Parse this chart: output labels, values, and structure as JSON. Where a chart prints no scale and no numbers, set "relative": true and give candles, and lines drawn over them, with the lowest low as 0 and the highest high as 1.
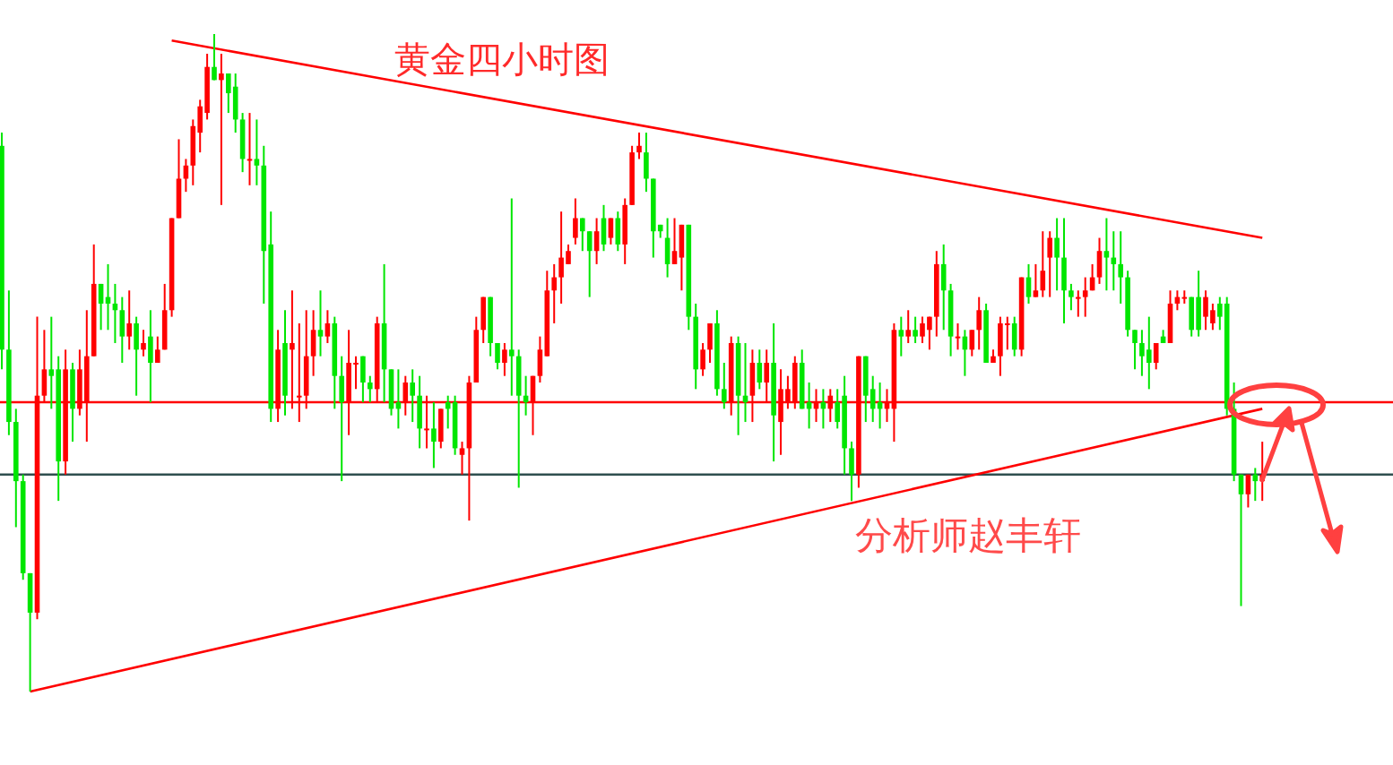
{
  "chart_data": {
    "type": "candlestick",
    "title": "黄金四小时图",
    "annotations": [
      "分析师赵丰轩"
    ],
    "relative": true,
    "categories": [
      null,
      null,
      null,
      null,
      null,
      null,
      null,
      null,
      null,
      null,
      null,
      null,
      null,
      null,
      null,
      null,
      null,
      null,
      null,
      null,
      null,
      null,
      null,
      null,
      null,
      null,
      null,
      null,
      null,
      null,
      null,
      null,
      null,
      null,
      null,
      null,
      null,
      null,
      null,
      null,
      null,
      null,
      null,
      null,
      null,
      null,
      null,
      null,
      null,
      null,
      null,
      null,
      null,
      null,
      null,
      null,
      null,
      null,
      null,
      null,
      null,
      null,
      null,
      null,
      null,
      null,
      null,
      null,
      null,
      null,
      null,
      null,
      null,
      null,
      null,
      null,
      null,
      null,
      null,
      null,
      null,
      null,
      null,
      null,
      null,
      null,
      null,
      null,
      null,
      null,
      null,
      null,
      null,
      null,
      null,
      null,
      null,
      null,
      null,
      null,
      null,
      null,
      null,
      null,
      null,
      null,
      null,
      null,
      null,
      null,
      null,
      null,
      null,
      null,
      null,
      null,
      null,
      null,
      null,
      null,
      null,
      null,
      null,
      null,
      null,
      null,
      null,
      null,
      null,
      null,
      null,
      null,
      null,
      null,
      null,
      null,
      null,
      null,
      null,
      null,
      null,
      null,
      null,
      null,
      null,
      null,
      null,
      null,
      null,
      null,
      null,
      null,
      null,
      null,
      null,
      null,
      null,
      null,
      null,
      null,
      null,
      null,
      null,
      null,
      null,
      null,
      null,
      null,
      null,
      null,
      null,
      null,
      null,
      null,
      null,
      null,
      null,
      null,
      null
    ],
    "ohlc": [
      [
        0.83,
        0.85,
        0.49,
        0.52
      ],
      [
        0.52,
        0.61,
        0.39,
        0.41
      ],
      [
        0.41,
        0.43,
        0.25,
        0.32
      ],
      [
        0.32,
        0.33,
        0.17,
        0.18
      ],
      [
        0.18,
        0.18,
        0,
        0.12
      ],
      [
        0.12,
        0.57,
        0.11,
        0.45
      ],
      [
        0.45,
        0.55,
        0.44,
        0.49
      ],
      [
        0.49,
        0.57,
        0.43,
        0.48
      ],
      [
        0.49,
        0.51,
        0.29,
        0.35
      ],
      [
        0.35,
        0.52,
        0.33,
        0.49
      ],
      [
        0.49,
        0.5,
        0.38,
        0.43
      ],
      [
        0.43,
        0.52,
        0.42,
        0.49
      ],
      [
        0.44,
        0.58,
        0.38,
        0.51
      ],
      [
        0.51,
        0.68,
        0.51,
        0.62
      ],
      [
        0.62,
        0.62,
        0.55,
        0.59
      ],
      [
        0.6,
        0.65,
        0.55,
        0.59
      ],
      [
        0.59,
        0.62,
        0.53,
        0.58
      ],
      [
        0.58,
        0.6,
        0.5,
        0.54
      ],
      [
        0.54,
        0.61,
        0.52,
        0.56
      ],
      [
        0.56,
        0.57,
        0.45,
        0.52
      ],
      [
        0.52,
        0.55,
        0.51,
        0.53
      ],
      [
        0.54,
        0.58,
        0.44,
        0.5
      ],
      [
        0.5,
        0.54,
        0.5,
        0.52
      ],
      [
        0.52,
        0.62,
        0.52,
        0.58
      ],
      [
        0.58,
        0.72,
        0.57,
        0.72
      ],
      [
        0.72,
        0.84,
        0.72,
        0.78
      ],
      [
        0.78,
        0.81,
        0.76,
        0.8
      ],
      [
        0.8,
        0.87,
        0.77,
        0.86
      ],
      [
        0.85,
        0.9,
        0.82,
        0.89
      ],
      [
        0.88,
        0.97,
        0.87,
        0.95
      ],
      [
        0.95,
        1,
        0.93,
        0.93
      ],
      [
        0.93,
        0.97,
        0.74,
        0.94
      ],
      [
        0.94,
        0.94,
        0.88,
        0.91
      ],
      [
        0.92,
        0.94,
        0.85,
        0.87
      ],
      [
        0.87,
        0.88,
        0.79,
        0.81
      ],
      [
        0.81,
        0.88,
        0.77,
        0.81
      ],
      [
        0.81,
        0.87,
        0.77,
        0.8
      ],
      [
        0.8,
        0.83,
        0.59,
        0.67
      ],
      [
        0.68,
        0.73,
        0.41,
        0.43
      ],
      [
        0.43,
        0.55,
        0.41,
        0.52
      ],
      [
        0.53,
        0.58,
        0.42,
        0.45
      ],
      [
        0.52,
        0.61,
        0.43,
        0.53
      ],
      [
        0.45,
        0.56,
        0.41,
        0.45
      ],
      [
        0.45,
        0.58,
        0.43,
        0.51
      ],
      [
        0.51,
        0.58,
        0.48,
        0.55
      ],
      [
        0.55,
        0.61,
        0.51,
        0.54
      ],
      [
        0.54,
        0.58,
        0.53,
        0.56
      ],
      [
        0.56,
        0.57,
        0.43,
        0.48
      ],
      [
        0.48,
        0.51,
        0.32,
        0.44
      ],
      [
        0.44,
        0.55,
        0.39,
        0.5
      ],
      [
        0.5,
        0.51,
        0.46,
        0.5
      ],
      [
        0.51,
        0.51,
        0.44,
        0.47
      ],
      [
        0.47,
        0.48,
        0.44,
        0.46
      ],
      [
        0.46,
        0.57,
        0.44,
        0.56
      ],
      [
        0.56,
        0.65,
        0.44,
        0.49
      ],
      [
        0.49,
        0.49,
        0.42,
        0.43
      ],
      [
        0.44,
        0.49,
        0.4,
        0.43
      ],
      [
        0.44,
        0.48,
        0.42,
        0.47
      ],
      [
        0.47,
        0.49,
        0.41,
        0.45
      ],
      [
        0.45,
        0.48,
        0.37,
        0.4
      ],
      [
        0.4,
        0.45,
        0.37,
        0.4
      ],
      [
        0.4,
        0.44,
        0.34,
        0.38
      ],
      [
        0.38,
        0.43,
        0.37,
        0.43
      ],
      [
        0.44,
        0.45,
        0.4,
        0.43
      ],
      [
        0.44,
        0.45,
        0.36,
        0.37
      ],
      [
        0.36,
        0.38,
        0.33,
        0.37
      ],
      [
        0.37,
        0.48,
        0.26,
        0.47
      ],
      [
        0.47,
        0.57,
        0.47,
        0.55
      ],
      [
        0.55,
        0.6,
        0.53,
        0.6
      ],
      [
        0.6,
        0.6,
        0.51,
        0.53
      ],
      [
        0.53,
        0.53,
        0.49,
        0.5
      ],
      [
        0.5,
        0.53,
        0.48,
        0.52
      ],
      [
        0.52,
        0.75,
        0.45,
        0.51
      ],
      [
        0.51,
        0.52,
        0.31,
        0.45
      ],
      [
        0.45,
        0.48,
        0.42,
        0.44
      ],
      [
        0.44,
        0.48,
        0.39,
        0.48
      ],
      [
        0.48,
        0.54,
        0.47,
        0.52
      ],
      [
        0.51,
        0.64,
        0.51,
        0.61
      ],
      [
        0.61,
        0.65,
        0.56,
        0.63
      ],
      [
        0.63,
        0.73,
        0.59,
        0.66
      ],
      [
        0.65,
        0.68,
        0.65,
        0.67
      ],
      [
        0.69,
        0.75,
        0.68,
        0.72
      ],
      [
        0.72,
        0.72,
        0.67,
        0.7
      ],
      [
        0.7,
        0.7,
        0.6,
        0.67
      ],
      [
        0.67,
        0.72,
        0.65,
        0.7
      ],
      [
        0.72,
        0.74,
        0.67,
        0.68
      ],
      [
        0.69,
        0.72,
        0.68,
        0.72
      ],
      [
        0.72,
        0.73,
        0.67,
        0.68
      ],
      [
        0.68,
        0.75,
        0.65,
        0.74
      ],
      [
        0.74,
        0.83,
        0.74,
        0.82
      ],
      [
        0.82,
        0.85,
        0.81,
        0.83
      ],
      [
        0.82,
        0.85,
        0.76,
        0.78
      ],
      [
        0.78,
        0.78,
        0.66,
        0.7
      ],
      [
        0.71,
        0.71,
        0.69,
        0.7
      ],
      [
        0.69,
        0.72,
        0.63,
        0.65
      ],
      [
        0.65,
        0.72,
        0.65,
        0.67
      ],
      [
        0.66,
        0.71,
        0.61,
        0.71
      ],
      [
        0.71,
        0.71,
        0.55,
        0.57
      ],
      [
        0.57,
        0.59,
        0.46,
        0.49
      ],
      [
        0.49,
        0.53,
        0.48,
        0.52
      ],
      [
        0.52,
        0.56,
        0.5,
        0.56
      ],
      [
        0.56,
        0.58,
        0.45,
        0.46
      ],
      [
        0.46,
        0.5,
        0.43,
        0.44
      ],
      [
        0.44,
        0.54,
        0.42,
        0.53
      ],
      [
        0.53,
        0.54,
        0.39,
        0.45
      ],
      [
        0.45,
        0.53,
        0.41,
        0.44
      ],
      [
        0.45,
        0.52,
        0.41,
        0.5
      ],
      [
        0.5,
        0.52,
        0.46,
        0.47
      ],
      [
        0.47,
        0.52,
        0.44,
        0.5
      ],
      [
        0.5,
        0.56,
        0.35,
        0.42
      ],
      [
        0.41,
        0.49,
        0.36,
        0.46
      ],
      [
        0.44,
        0.48,
        0.43,
        0.46
      ],
      [
        0.44,
        0.51,
        0.43,
        0.5
      ],
      [
        0.5,
        0.52,
        0.43,
        0.43
      ],
      [
        0.44,
        0.47,
        0.4,
        0.43
      ],
      [
        0.43,
        0.46,
        0.41,
        0.44
      ],
      [
        0.44,
        0.46,
        0.4,
        0.43
      ],
      [
        0.43,
        0.46,
        0.41,
        0.45
      ],
      [
        0.44,
        0.46,
        0.4,
        0.41
      ],
      [
        0.45,
        0.48,
        0.33,
        0.37
      ],
      [
        0.37,
        0.38,
        0.29,
        0.33
      ],
      [
        0.33,
        0.51,
        0.31,
        0.51
      ],
      [
        0.51,
        0.51,
        0.41,
        0.45
      ],
      [
        0.46,
        0.48,
        0.41,
        0.43
      ],
      [
        0.44,
        0.47,
        0.4,
        0.43
      ],
      [
        0.43,
        0.46,
        0.41,
        0.44
      ],
      [
        0.43,
        0.56,
        0.38,
        0.55
      ],
      [
        0.55,
        0.57,
        0.51,
        0.54
      ],
      [
        0.54,
        0.58,
        0.53,
        0.55
      ],
      [
        0.55,
        0.57,
        0.53,
        0.54
      ],
      [
        0.54,
        0.57,
        0.53,
        0.56
      ],
      [
        0.55,
        0.57,
        0.52,
        0.57
      ],
      [
        0.57,
        0.67,
        0.54,
        0.65
      ],
      [
        0.65,
        0.68,
        0.55,
        0.61
      ],
      [
        0.61,
        0.62,
        0.51,
        0.54
      ],
      [
        0.54,
        0.56,
        0.52,
        0.54
      ],
      [
        0.54,
        0.55,
        0.48,
        0.52
      ],
      [
        0.52,
        0.55,
        0.51,
        0.55
      ],
      [
        0.55,
        0.6,
        0.52,
        0.58
      ],
      [
        0.58,
        0.59,
        0.5,
        0.5
      ],
      [
        0.5,
        0.52,
        0.5,
        0.51
      ],
      [
        0.51,
        0.57,
        0.48,
        0.56
      ],
      [
        0.56,
        0.57,
        0.52,
        0.56
      ],
      [
        0.56,
        0.57,
        0.51,
        0.52
      ],
      [
        0.52,
        0.63,
        0.51,
        0.63
      ],
      [
        0.63,
        0.65,
        0.59,
        0.6
      ],
      [
        0.6,
        0.65,
        0.6,
        0.61
      ],
      [
        0.61,
        0.7,
        0.6,
        0.64
      ],
      [
        0.66,
        0.7,
        0.6,
        0.69
      ],
      [
        0.69,
        0.72,
        0.61,
        0.66
      ],
      [
        0.66,
        0.72,
        0.56,
        0.61
      ],
      [
        0.61,
        0.62,
        0.58,
        0.6
      ],
      [
        0.6,
        0.61,
        0.57,
        0.6
      ],
      [
        0.6,
        0.63,
        0.57,
        0.61
      ],
      [
        0.61,
        0.65,
        0.61,
        0.63
      ],
      [
        0.63,
        0.69,
        0.62,
        0.67
      ],
      [
        0.67,
        0.72,
        0.61,
        0.66
      ],
      [
        0.66,
        0.7,
        0.61,
        0.65
      ],
      [
        0.65,
        0.7,
        0.59,
        0.63
      ],
      [
        0.63,
        0.64,
        0.54,
        0.55
      ],
      [
        0.55,
        0.55,
        0.49,
        0.53
      ],
      [
        0.53,
        0.55,
        0.48,
        0.51
      ],
      [
        0.52,
        0.57,
        0.46,
        0.5
      ],
      [
        0.5,
        0.53,
        0.49,
        0.53
      ],
      [
        0.54,
        0.55,
        0.53,
        0.53
      ],
      [
        0.53,
        0.61,
        0.53,
        0.59
      ],
      [
        0.59,
        0.61,
        0.58,
        0.6
      ],
      [
        0.6,
        0.61,
        0.59,
        0.6
      ],
      [
        0.6,
        0.6,
        0.54,
        0.55
      ],
      [
        0.6,
        0.64,
        0.54,
        0.55
      ],
      [
        0.57,
        0.61,
        0.55,
        0.6
      ],
      [
        0.56,
        0.59,
        0.55,
        0.58
      ],
      [
        0.59,
        0.6,
        0.55,
        0.57
      ],
      [
        0.59,
        0.6,
        0.42,
        0.43
      ],
      [
        0.43,
        0.47,
        0.32,
        0.33
      ],
      [
        0.33,
        0.33,
        0.13,
        0.3
      ],
      [
        0.3,
        0.33,
        0.28,
        0.33
      ],
      [
        0.33,
        0.34,
        0.29,
        0.32
      ],
      [
        0.32,
        0.38,
        0.29,
        0.33
      ]
    ],
    "series": [
      {
        "type": "line",
        "color": "#ff0000",
        "values": [
          null,
          null,
          null,
          null,
          null,
          null,
          null,
          null,
          null,
          null,
          null,
          null,
          null,
          null,
          null,
          null,
          null,
          null,
          null,
          null,
          null,
          null,
          null,
          null,
          0.99,
          null,
          null,
          null,
          null,
          null,
          null,
          null,
          null,
          null,
          null,
          null,
          null,
          null,
          null,
          null,
          null,
          null,
          null,
          null,
          null,
          null,
          null,
          null,
          null,
          null,
          null,
          null,
          null,
          null,
          null,
          null,
          null,
          null,
          null,
          null,
          null,
          null,
          null,
          null,
          null,
          null,
          null,
          null,
          null,
          null,
          null,
          null,
          null,
          null,
          null,
          null,
          null,
          null,
          null,
          null,
          null,
          null,
          null,
          null,
          null,
          null,
          null,
          null,
          null,
          null,
          null,
          null,
          null,
          null,
          null,
          null,
          null,
          null,
          null,
          null,
          null,
          null,
          null,
          null,
          null,
          null,
          null,
          null,
          null,
          null,
          null,
          null,
          null,
          null,
          null,
          null,
          null,
          null,
          null,
          null,
          null,
          null,
          null,
          null,
          null,
          null,
          null,
          null,
          null,
          null,
          null,
          null,
          null,
          null,
          null,
          null,
          null,
          null,
          null,
          null,
          null,
          null,
          null,
          null,
          null,
          null,
          null,
          null,
          null,
          null,
          null,
          null,
          null,
          null,
          null,
          null,
          null,
          null,
          null,
          null,
          null,
          null,
          null,
          null,
          null,
          null,
          null,
          null,
          null,
          null,
          null,
          null,
          null,
          null,
          null,
          null,
          null,
          null,
          0.69
        ]
      },
      {
        "type": "line",
        "color": "#ff0000",
        "values": [
          null,
          null,
          null,
          null,
          0,
          null,
          null,
          null,
          null,
          null,
          null,
          null,
          null,
          null,
          null,
          null,
          null,
          null,
          null,
          null,
          null,
          null,
          null,
          null,
          null,
          null,
          null,
          null,
          null,
          null,
          null,
          null,
          null,
          null,
          null,
          null,
          null,
          null,
          null,
          null,
          null,
          null,
          null,
          null,
          null,
          null,
          null,
          null,
          null,
          null,
          null,
          null,
          null,
          null,
          null,
          null,
          null,
          null,
          null,
          null,
          null,
          null,
          null,
          null,
          null,
          null,
          null,
          null,
          null,
          null,
          null,
          null,
          null,
          null,
          null,
          null,
          null,
          null,
          null,
          null,
          null,
          null,
          null,
          null,
          null,
          null,
          null,
          null,
          null,
          null,
          null,
          null,
          null,
          null,
          null,
          null,
          null,
          null,
          null,
          null,
          null,
          null,
          null,
          null,
          null,
          null,
          null,
          null,
          null,
          null,
          null,
          null,
          null,
          null,
          null,
          null,
          null,
          null,
          null,
          null,
          null,
          null,
          null,
          null,
          null,
          null,
          null,
          null,
          null,
          null,
          null,
          null,
          null,
          null,
          null,
          null,
          null,
          null,
          null,
          null,
          null,
          null,
          null,
          null,
          null,
          null,
          null,
          null,
          null,
          null,
          null,
          null,
          null,
          null,
          null,
          null,
          null,
          null,
          null,
          null,
          null,
          null,
          null,
          null,
          null,
          null,
          null,
          null,
          null,
          null,
          null,
          null,
          null,
          null,
          null,
          null,
          null,
          null,
          0.43
        ]
      }
    ],
    "ref_lines": [
      {
        "axis": "y",
        "value": 0.44,
        "color": "#ff0000"
      },
      {
        "axis": "y",
        "value": 0.33,
        "color": "#2f4f4f"
      }
    ]
  }
}
